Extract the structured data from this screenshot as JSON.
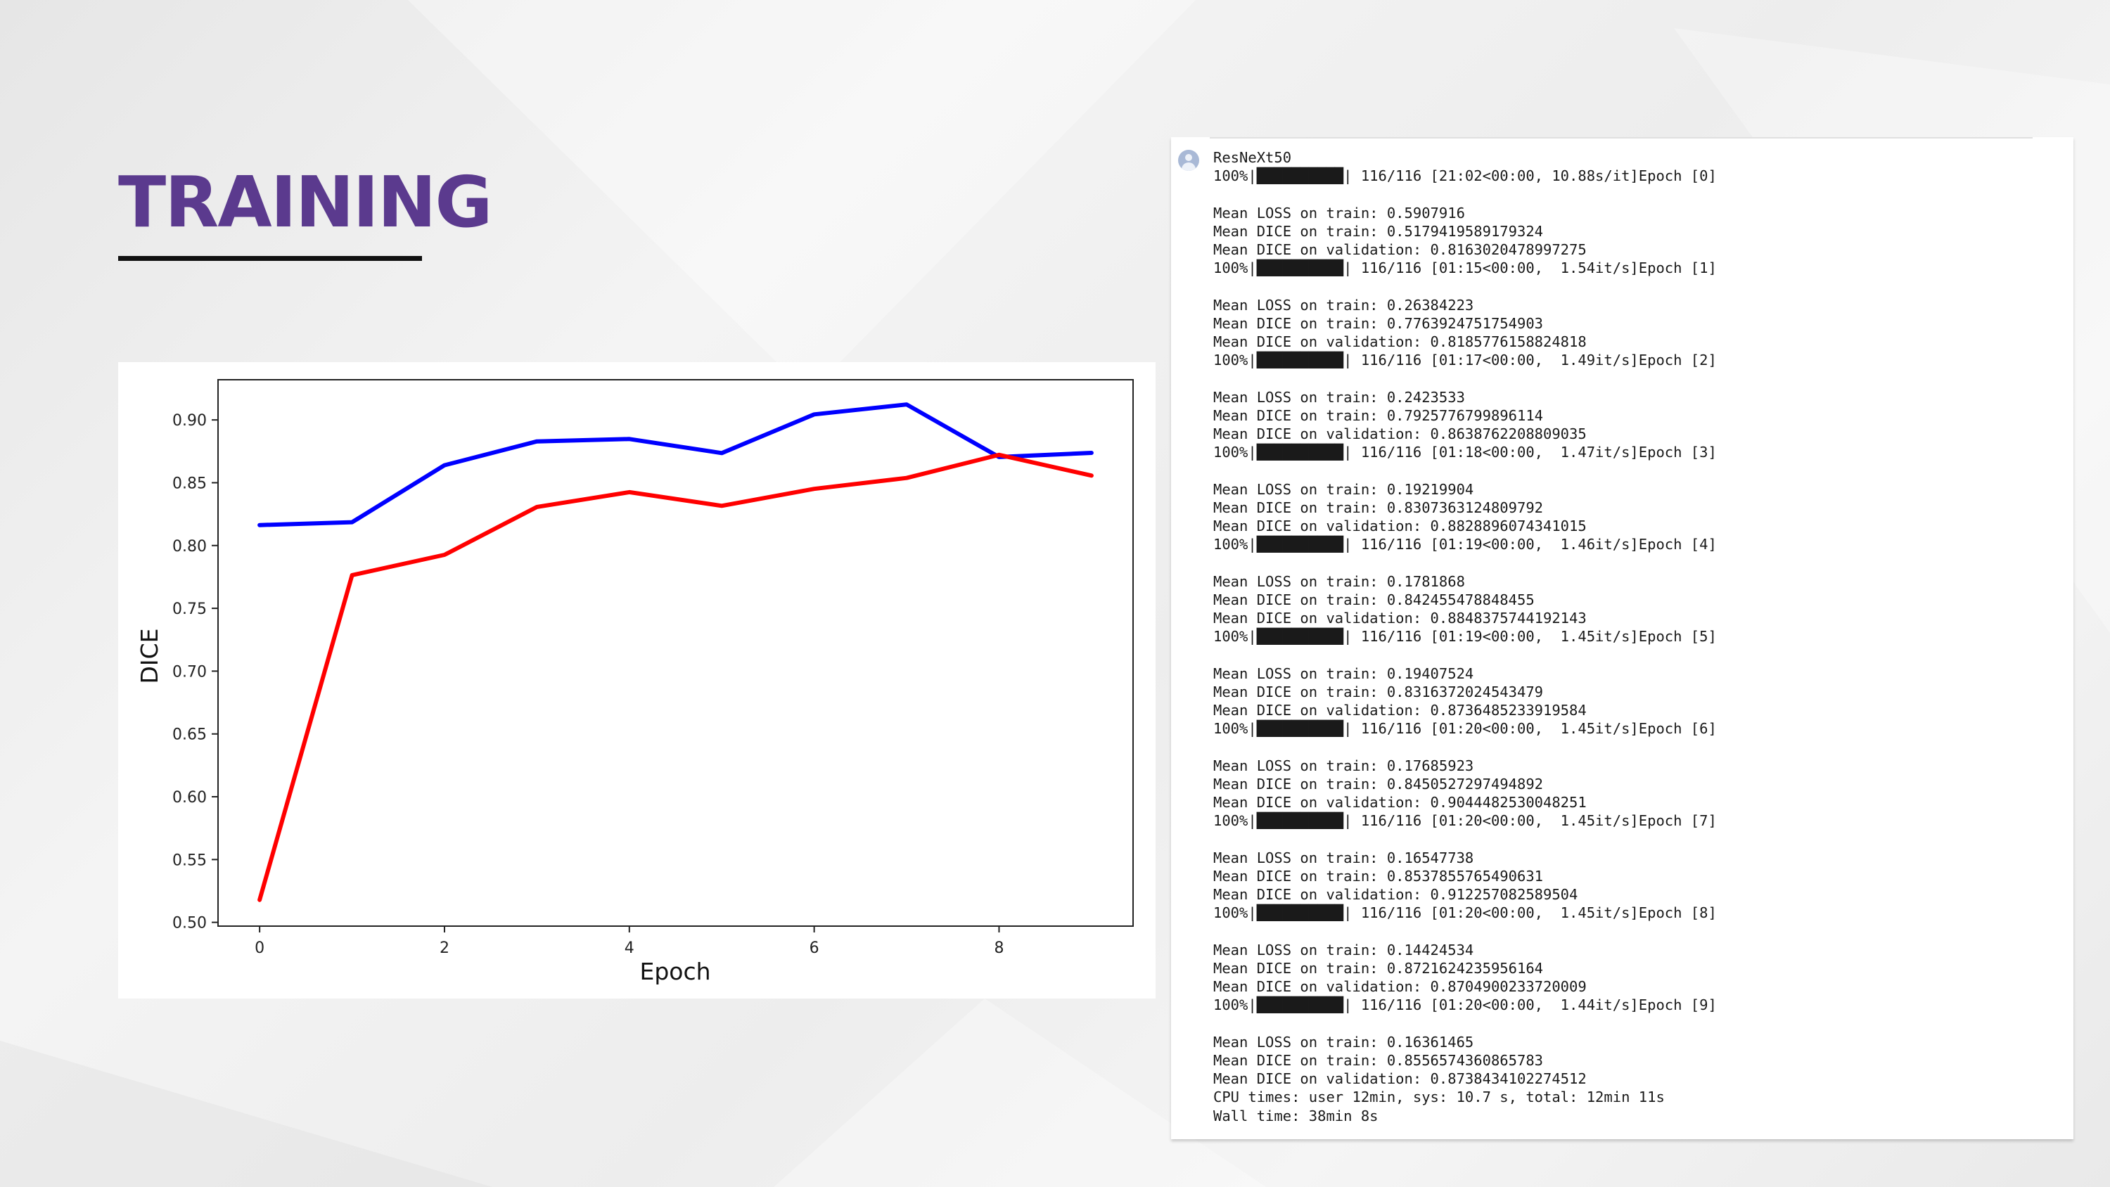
{
  "page": {
    "title": "TRAINING"
  },
  "colors": {
    "title": "#5b3a8e",
    "validation_line": "#0000ff",
    "train_line": "#ff0000"
  },
  "chart_data": {
    "type": "line",
    "title": "",
    "xlabel": "Epoch",
    "ylabel": "DICE",
    "xlim": [
      -0.45,
      9.45
    ],
    "ylim": [
      0.497,
      0.932
    ],
    "x_ticks": [
      0,
      2,
      4,
      6,
      8
    ],
    "y_ticks": [
      0.5,
      0.55,
      0.6,
      0.65,
      0.7,
      0.75,
      0.8,
      0.85,
      0.9
    ],
    "y_tick_labels": [
      "0.50",
      "0.55",
      "0.60",
      "0.65",
      "0.70",
      "0.75",
      "0.80",
      "0.85",
      "0.90"
    ],
    "grid": false,
    "legend": "none",
    "x": [
      0,
      1,
      2,
      3,
      4,
      5,
      6,
      7,
      8,
      9
    ],
    "series": [
      {
        "color": "#0000ff",
        "values": [
          0.8163,
          0.8186,
          0.8639,
          0.8829,
          0.8848,
          0.8736,
          0.9044,
          0.9123,
          0.8705,
          0.8738
        ]
      },
      {
        "color": "#ff0000",
        "values": [
          0.5179,
          0.7764,
          0.7926,
          0.8307,
          0.8425,
          0.8316,
          0.8451,
          0.8538,
          0.8722,
          0.8557
        ]
      }
    ]
  },
  "console": {
    "lines": [
      "ResNeXt50",
      "100%|██████████| 116/116 [21:02<00:00, 10.88s/it]Epoch [0]",
      "",
      "Mean LOSS on train: 0.5907916",
      "Mean DICE on train: 0.5179419589179324",
      "Mean DICE on validation: 0.8163020478997275",
      "100%|██████████| 116/116 [01:15<00:00,  1.54it/s]Epoch [1]",
      "",
      "Mean LOSS on train: 0.26384223",
      "Mean DICE on train: 0.7763924751754903",
      "Mean DICE on validation: 0.8185776158824818",
      "100%|██████████| 116/116 [01:17<00:00,  1.49it/s]Epoch [2]",
      "",
      "Mean LOSS on train: 0.2423533",
      "Mean DICE on train: 0.7925776799896114",
      "Mean DICE on validation: 0.8638762208809035",
      "100%|██████████| 116/116 [01:18<00:00,  1.47it/s]Epoch [3]",
      "",
      "Mean LOSS on train: 0.19219904",
      "Mean DICE on train: 0.8307363124809792",
      "Mean DICE on validation: 0.8828896074341015",
      "100%|██████████| 116/116 [01:19<00:00,  1.46it/s]Epoch [4]",
      "",
      "Mean LOSS on train: 0.1781868",
      "Mean DICE on train: 0.842455478848455",
      "Mean DICE on validation: 0.8848375744192143",
      "100%|██████████| 116/116 [01:19<00:00,  1.45it/s]Epoch [5]",
      "",
      "Mean LOSS on train: 0.19407524",
      "Mean DICE on train: 0.8316372024543479",
      "Mean DICE on validation: 0.8736485233919584",
      "100%|██████████| 116/116 [01:20<00:00,  1.45it/s]Epoch [6]",
      "",
      "Mean LOSS on train: 0.17685923",
      "Mean DICE on train: 0.8450527297494892",
      "Mean DICE on validation: 0.9044482530048251",
      "100%|██████████| 116/116 [01:20<00:00,  1.45it/s]Epoch [7]",
      "",
      "Mean LOSS on train: 0.16547738",
      "Mean DICE on train: 0.8537855765490631",
      "Mean DICE on validation: 0.912257082589504",
      "100%|██████████| 116/116 [01:20<00:00,  1.45it/s]Epoch [8]",
      "",
      "Mean LOSS on train: 0.14424534",
      "Mean DICE on train: 0.8721624235956164",
      "Mean DICE on validation: 0.8704900233720009",
      "100%|██████████| 116/116 [01:20<00:00,  1.44it/s]Epoch [9]",
      "",
      "Mean LOSS on train: 0.16361465",
      "Mean DICE on train: 0.8556574360865783",
      "Mean DICE on validation: 0.8738434102274512",
      "CPU times: user 12min, sys: 10.7 s, total: 12min 11s",
      "Wall time: 38min 8s"
    ]
  }
}
